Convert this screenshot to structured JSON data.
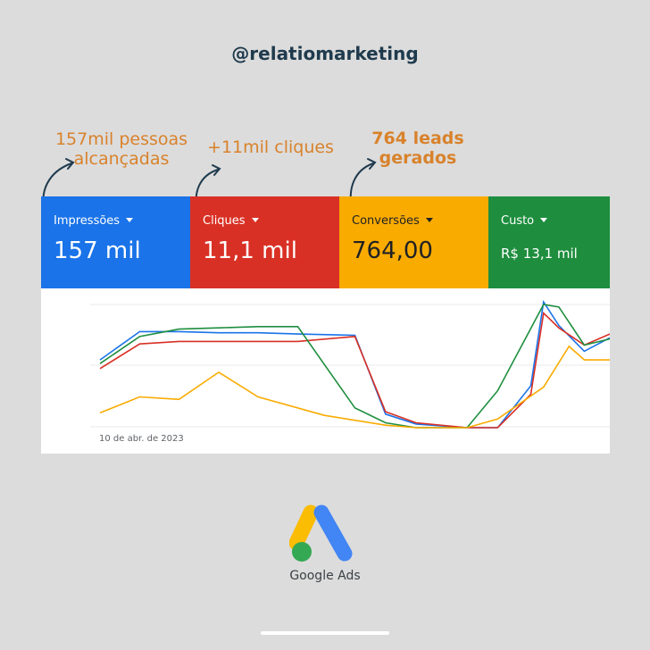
{
  "handle": "@relatiomarketing",
  "annotations": [
    {
      "line1": "157mil pessoas",
      "line2": "alcançadas"
    },
    {
      "line1": "+11mil cliques"
    },
    {
      "line1": "764 leads",
      "line2": "gerados"
    }
  ],
  "metrics": [
    {
      "label": "Impressões",
      "value": "157 mil",
      "color": "#1a73e8"
    },
    {
      "label": "Cliques",
      "value": "11,1 mil",
      "color": "#d93025"
    },
    {
      "label": "Conversões",
      "value": "764,00",
      "color": "#f9ab00"
    },
    {
      "label": "Custo",
      "value": "R$ 13,1 mil",
      "color": "#1e8e3e"
    }
  ],
  "chart": {
    "date_label": "10 de abr. de 2023",
    "series": [
      {
        "color": "#1a73e8",
        "values": [
          0.55,
          0.78,
          0.78,
          0.77,
          0.77,
          0.76,
          0.75,
          0.11,
          0.03,
          0.0,
          0.0,
          0.34,
          1.02,
          0.83,
          0.62,
          0.73
        ]
      },
      {
        "color": "#d93025",
        "values": [
          0.48,
          0.68,
          0.7,
          0.7,
          0.7,
          0.74,
          0.13,
          0.04,
          0.0,
          0.0,
          0.27,
          0.93,
          0.81,
          0.67,
          0.76
        ]
      },
      {
        "color": "#1e8e3e",
        "values": [
          0.52,
          0.74,
          0.8,
          0.81,
          0.82,
          0.82,
          0.16,
          0.04,
          0.0,
          0.0,
          0.3,
          1.0,
          0.98,
          0.67,
          0.72
        ]
      },
      {
        "color": "#f9ab00",
        "values": [
          0.12,
          0.25,
          0.23,
          0.45,
          0.25,
          0.1,
          0.02,
          0.0,
          0.0,
          0.07,
          0.33,
          0.66,
          0.55,
          0.55
        ]
      }
    ]
  },
  "logo_text": "Google Ads"
}
